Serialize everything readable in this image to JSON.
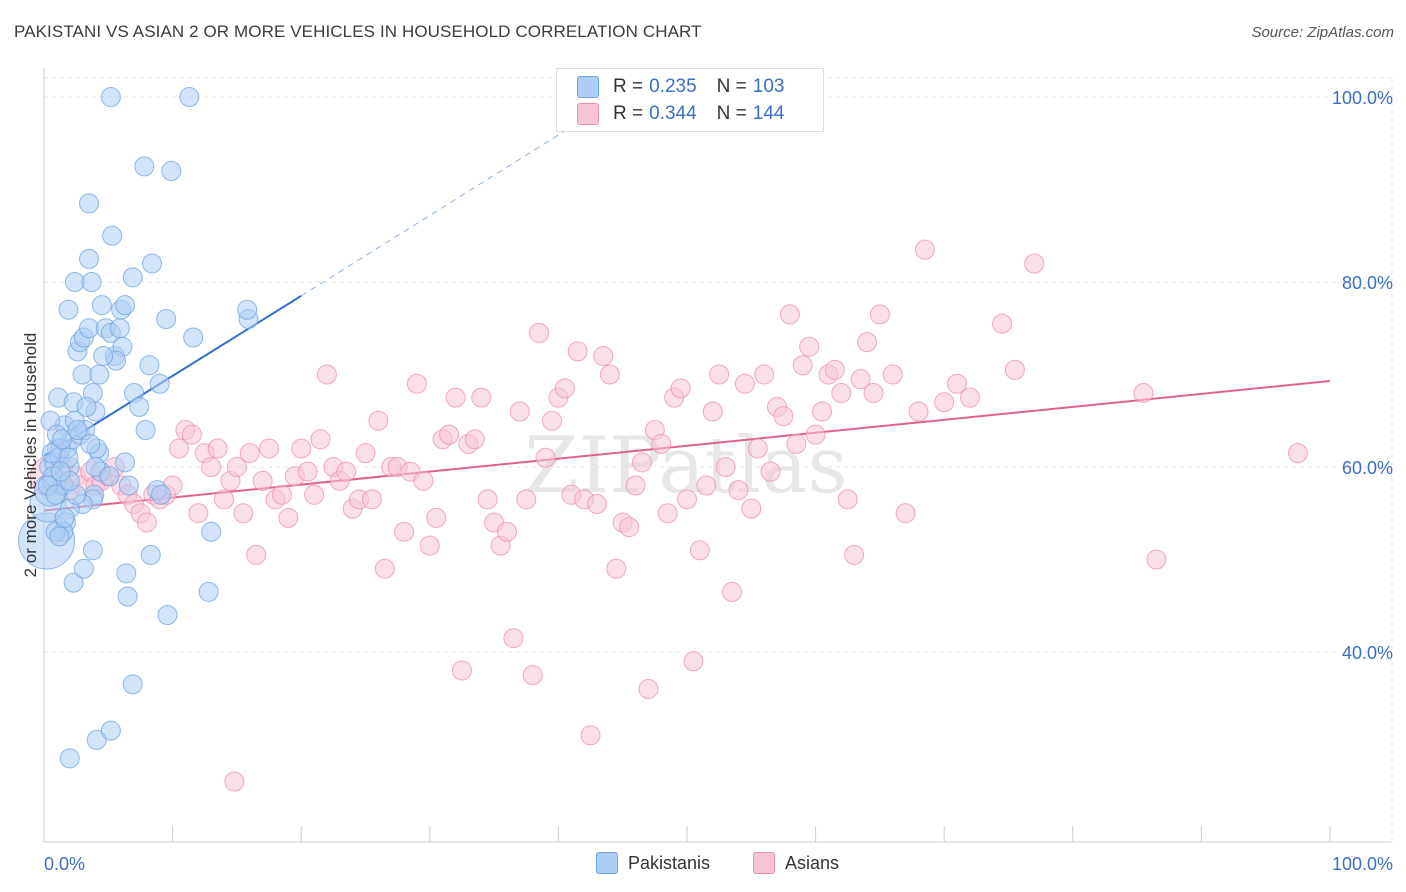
{
  "title": "PAKISTANI VS ASIAN 2 OR MORE VEHICLES IN HOUSEHOLD CORRELATION CHART",
  "source": "Source: ZipAtlas.com",
  "watermark": "ZIPatlas",
  "legend": {
    "rows": [
      {
        "r_label": "R =",
        "r_value": "0.235",
        "n_label": "N =",
        "n_value": "103",
        "color": "#aecdf5",
        "stroke": "#6fa3e0"
      },
      {
        "r_label": "R =",
        "r_value": "0.344",
        "n_label": "N =",
        "n_value": "144",
        "color": "#f8c5d5",
        "stroke": "#ee8fae"
      }
    ]
  },
  "bottom_legend": [
    {
      "label": "Pakistanis",
      "color": "#aecdf5",
      "stroke": "#6fa3e0"
    },
    {
      "label": "Asians",
      "color": "#f8c5d5",
      "stroke": "#ee8fae"
    }
  ],
  "chart_data": {
    "type": "scatter",
    "title": "PAKISTANI VS ASIAN 2 OR MORE VEHICLES IN HOUSEHOLD CORRELATION CHART",
    "xlabel": "",
    "ylabel": "2 or more Vehicles in Household",
    "xlim": [
      0,
      100
    ],
    "ylim": [
      20,
      102
    ],
    "x_tick_labels": [
      "0.0%",
      "100.0%"
    ],
    "y_ticks": [
      40,
      60,
      80,
      100
    ],
    "y_tick_labels": [
      "40.0%",
      "60.0%",
      "80.0%",
      "100.0%"
    ],
    "grid": true,
    "series": [
      {
        "name": "Pakistanis",
        "color": "#aecdf5",
        "stroke": "#6fa3e0",
        "line_color": "#2f6fd0",
        "trend": {
          "x0": 0,
          "y0": 61.2,
          "x1": 20,
          "y1": 78.5,
          "dash_x1": 43,
          "dash_y1": 98.5
        },
        "points": [
          [
            0.2,
            52
          ],
          [
            0.3,
            56
          ],
          [
            0.5,
            57.5
          ],
          [
            0.6,
            58.5
          ],
          [
            0.4,
            60
          ],
          [
            0.8,
            60.5
          ],
          [
            1.0,
            62
          ],
          [
            1.2,
            61
          ],
          [
            0.7,
            59
          ],
          [
            1.5,
            58
          ],
          [
            1.8,
            62
          ],
          [
            2.0,
            60
          ],
          [
            2.2,
            63
          ],
          [
            1.6,
            64.5
          ],
          [
            2.4,
            65
          ],
          [
            1.1,
            67.5
          ],
          [
            2.3,
            67
          ],
          [
            2.6,
            72.5
          ],
          [
            2.8,
            73.5
          ],
          [
            3.1,
            74
          ],
          [
            3.5,
            75
          ],
          [
            3.0,
            70
          ],
          [
            3.8,
            68
          ],
          [
            4.0,
            66
          ],
          [
            1.9,
            77
          ],
          [
            4.5,
            77.5
          ],
          [
            4.8,
            75
          ],
          [
            5.2,
            74.5
          ],
          [
            5.5,
            72
          ],
          [
            6.0,
            77
          ],
          [
            6.3,
            77.5
          ],
          [
            6.1,
            73
          ],
          [
            5.6,
            71.5
          ],
          [
            4.3,
            70
          ],
          [
            7.0,
            68
          ],
          [
            7.4,
            66.5
          ],
          [
            7.9,
            64
          ],
          [
            8.2,
            71
          ],
          [
            9.0,
            69
          ],
          [
            9.5,
            76
          ],
          [
            11.6,
            74
          ],
          [
            15.9,
            76
          ],
          [
            15.8,
            77
          ],
          [
            3.5,
            88.5
          ],
          [
            5.2,
            100
          ],
          [
            11.3,
            100
          ],
          [
            7.8,
            92.5
          ],
          [
            9.9,
            92
          ],
          [
            5.3,
            85
          ],
          [
            3.5,
            82.5
          ],
          [
            8.4,
            82
          ],
          [
            2.4,
            80
          ],
          [
            3.7,
            80
          ],
          [
            6.9,
            80.5
          ],
          [
            0.5,
            65
          ],
          [
            1.0,
            63.5
          ],
          [
            1.3,
            62
          ],
          [
            1.9,
            61
          ],
          [
            2.8,
            63.5
          ],
          [
            3.2,
            64
          ],
          [
            4.3,
            61.5
          ],
          [
            4.1,
            62
          ],
          [
            4.4,
            59.5
          ],
          [
            3.9,
            57
          ],
          [
            3.8,
            56.5
          ],
          [
            3.0,
            56
          ],
          [
            2.0,
            55.5
          ],
          [
            1.7,
            54
          ],
          [
            1.5,
            53
          ],
          [
            0.9,
            53
          ],
          [
            1.2,
            52.5
          ],
          [
            1.6,
            54.5
          ],
          [
            2.5,
            57
          ],
          [
            3.8,
            51
          ],
          [
            6.3,
            60.5
          ],
          [
            6.6,
            58
          ],
          [
            8.8,
            57.5
          ],
          [
            9.1,
            57
          ],
          [
            8.3,
            50.5
          ],
          [
            6.4,
            48.5
          ],
          [
            2.3,
            47.5
          ],
          [
            3.1,
            49
          ],
          [
            6.5,
            46
          ],
          [
            9.6,
            44
          ],
          [
            12.8,
            46.5
          ],
          [
            13.0,
            53
          ],
          [
            6.9,
            36.5
          ],
          [
            4.1,
            30.5
          ],
          [
            5.2,
            31.5
          ],
          [
            2.0,
            28.5
          ],
          [
            0.3,
            58
          ],
          [
            0.6,
            61.5
          ],
          [
            1.4,
            63
          ],
          [
            2.0,
            58.5
          ],
          [
            4.0,
            60
          ],
          [
            5.1,
            59
          ],
          [
            2.6,
            64
          ],
          [
            3.3,
            66.5
          ],
          [
            4.6,
            72
          ],
          [
            5.9,
            75
          ],
          [
            0.9,
            57
          ],
          [
            1.3,
            59.5
          ],
          [
            3.6,
            62.5
          ]
        ],
        "sizes": {
          "0": 28,
          "1": 18,
          "2": 16
        }
      },
      {
        "name": "Asians",
        "color": "#f8c5d5",
        "stroke": "#ee8fae",
        "line_color": "#e0618c",
        "trend": {
          "x0": 0,
          "y0": 55.3,
          "x1": 100,
          "y1": 69.3
        },
        "points": [
          [
            0.5,
            59
          ],
          [
            1.0,
            58.5
          ],
          [
            1.5,
            60
          ],
          [
            2.0,
            57.5
          ],
          [
            2.5,
            59
          ],
          [
            3.0,
            58
          ],
          [
            3.6,
            59.5
          ],
          [
            4.0,
            58
          ],
          [
            4.5,
            58.5
          ],
          [
            5.0,
            59
          ],
          [
            5.5,
            60
          ],
          [
            6.0,
            58
          ],
          [
            6.5,
            57
          ],
          [
            7.0,
            56
          ],
          [
            7.5,
            55
          ],
          [
            8.0,
            54
          ],
          [
            8.5,
            57
          ],
          [
            9.0,
            56.5
          ],
          [
            9.5,
            57
          ],
          [
            10.0,
            58
          ],
          [
            10.5,
            62
          ],
          [
            11.0,
            64
          ],
          [
            11.5,
            63.5
          ],
          [
            12.0,
            55
          ],
          [
            12.5,
            61.5
          ],
          [
            13.0,
            60
          ],
          [
            13.5,
            62
          ],
          [
            14.0,
            56.5
          ],
          [
            14.5,
            58.5
          ],
          [
            15.0,
            60
          ],
          [
            15.5,
            55
          ],
          [
            16.0,
            61.5
          ],
          [
            16.5,
            50.5
          ],
          [
            17.0,
            58.5
          ],
          [
            17.5,
            62
          ],
          [
            18.0,
            56.5
          ],
          [
            18.5,
            57
          ],
          [
            19.0,
            54.5
          ],
          [
            19.5,
            59
          ],
          [
            20.0,
            62
          ],
          [
            20.5,
            59.5
          ],
          [
            21.0,
            57
          ],
          [
            21.5,
            63
          ],
          [
            22.0,
            70
          ],
          [
            22.5,
            60
          ],
          [
            23.0,
            58.5
          ],
          [
            23.5,
            59.5
          ],
          [
            24.0,
            55.5
          ],
          [
            24.5,
            56.5
          ],
          [
            25.0,
            61.5
          ],
          [
            25.5,
            56.5
          ],
          [
            26.0,
            65
          ],
          [
            26.5,
            49
          ],
          [
            27.0,
            60
          ],
          [
            27.5,
            60
          ],
          [
            28.0,
            53
          ],
          [
            28.5,
            59.5
          ],
          [
            29.0,
            69
          ],
          [
            29.5,
            58.5
          ],
          [
            30.0,
            51.5
          ],
          [
            30.5,
            54.5
          ],
          [
            31.0,
            63
          ],
          [
            31.5,
            63.5
          ],
          [
            32.0,
            67.5
          ],
          [
            32.5,
            38
          ],
          [
            33.0,
            62.5
          ],
          [
            33.5,
            63
          ],
          [
            34.0,
            67.5
          ],
          [
            34.5,
            56.5
          ],
          [
            35.0,
            54
          ],
          [
            35.5,
            51.5
          ],
          [
            36.0,
            53
          ],
          [
            36.5,
            41.5
          ],
          [
            37.0,
            66
          ],
          [
            37.5,
            56.5
          ],
          [
            38.0,
            37.5
          ],
          [
            38.5,
            74.5
          ],
          [
            39.0,
            61
          ],
          [
            39.5,
            65
          ],
          [
            40.0,
            67.5
          ],
          [
            40.5,
            68.5
          ],
          [
            41.0,
            57
          ],
          [
            41.5,
            72.5
          ],
          [
            42.0,
            56.5
          ],
          [
            42.5,
            31
          ],
          [
            43.0,
            56
          ],
          [
            43.5,
            72
          ],
          [
            44.0,
            70
          ],
          [
            44.5,
            49
          ],
          [
            45.0,
            54
          ],
          [
            45.5,
            53.5
          ],
          [
            46.0,
            58
          ],
          [
            46.5,
            60.5
          ],
          [
            47.0,
            36
          ],
          [
            47.5,
            64
          ],
          [
            48.0,
            62.5
          ],
          [
            48.5,
            55
          ],
          [
            49.0,
            67.5
          ],
          [
            49.5,
            68.5
          ],
          [
            50.0,
            56.5
          ],
          [
            50.5,
            39
          ],
          [
            51.0,
            51
          ],
          [
            51.5,
            58
          ],
          [
            52.0,
            66
          ],
          [
            52.5,
            70
          ],
          [
            53.0,
            60
          ],
          [
            53.5,
            46.5
          ],
          [
            54.0,
            57.5
          ],
          [
            54.5,
            69
          ],
          [
            55.0,
            55.5
          ],
          [
            55.5,
            62
          ],
          [
            56.0,
            70
          ],
          [
            56.5,
            59.5
          ],
          [
            57.0,
            66.5
          ],
          [
            57.5,
            65.5
          ],
          [
            58.0,
            76.5
          ],
          [
            58.5,
            62.5
          ],
          [
            59.0,
            71
          ],
          [
            59.5,
            73
          ],
          [
            60.0,
            63.5
          ],
          [
            60.5,
            66
          ],
          [
            61.0,
            70
          ],
          [
            61.5,
            70.5
          ],
          [
            62.0,
            68
          ],
          [
            62.5,
            56.5
          ],
          [
            63.0,
            50.5
          ],
          [
            63.5,
            69.5
          ],
          [
            64.0,
            73.5
          ],
          [
            64.5,
            68
          ],
          [
            65.0,
            76.5
          ],
          [
            66.0,
            70
          ],
          [
            67.0,
            55
          ],
          [
            68.0,
            66
          ],
          [
            68.5,
            83.5
          ],
          [
            70.0,
            67
          ],
          [
            71.0,
            69
          ],
          [
            72.0,
            67.5
          ],
          [
            74.5,
            75.5
          ],
          [
            75.5,
            70.5
          ],
          [
            77.0,
            82
          ],
          [
            85.5,
            68
          ],
          [
            86.5,
            50
          ],
          [
            97.5,
            61.5
          ],
          [
            14.8,
            26
          ]
        ],
        "sizes": {
          "0": 20
        }
      }
    ]
  }
}
